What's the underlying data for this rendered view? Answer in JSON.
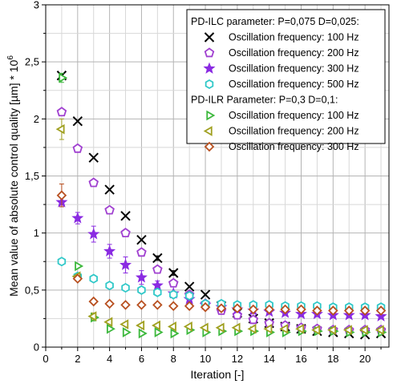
{
  "chart_data": {
    "type": "scatter",
    "xlabel": "Iteration [-]",
    "ylabel_main": "Mean value of absolute control quality [µm] * 10",
    "ylabel_exp": "6",
    "xlim": [
      0,
      21.5
    ],
    "ylim": [
      0,
      3
    ],
    "xticks": [
      0,
      2,
      4,
      6,
      8,
      10,
      12,
      14,
      16,
      18,
      20
    ],
    "xtick_labels": [
      "0",
      "2",
      "4",
      "6",
      "8",
      "10",
      "12",
      "14",
      "16",
      "18",
      "20"
    ],
    "yticks": [
      0,
      0.5,
      1,
      1.5,
      2,
      2.5,
      3
    ],
    "ytick_labels": [
      "0",
      "0,5",
      "1",
      "1,5",
      "2",
      "2,5",
      "3"
    ],
    "grid": true,
    "legend_position": "top-right",
    "legend_groups": [
      {
        "title": "PD-ILC parameter: P=0,075 D=0,025:",
        "series": [
          0,
          1,
          2,
          3
        ]
      },
      {
        "title": "PD-ILR Parameter: P=0,3 D=0,1:",
        "series": [
          4,
          5,
          6
        ]
      }
    ],
    "series": [
      {
        "name": "Oscillation frequency: 100 Hz",
        "marker": "x",
        "color": "#000000",
        "x": [
          1,
          2,
          3,
          4,
          5,
          6,
          7,
          8,
          9,
          10,
          11,
          12,
          13,
          14,
          15,
          16,
          17,
          18,
          19,
          20,
          21
        ],
        "y": [
          2.38,
          1.98,
          1.66,
          1.38,
          1.15,
          0.94,
          0.78,
          0.65,
          0.53,
          0.46,
          0.36,
          0.3,
          0.25,
          0.21,
          0.18,
          0.16,
          0.14,
          0.13,
          0.12,
          0.11,
          0.12
        ],
        "err": [
          0,
          0,
          0,
          0,
          0,
          0,
          0.02,
          0.02,
          0,
          0,
          0,
          0,
          0,
          0,
          0,
          0,
          0,
          0,
          0,
          0,
          0
        ]
      },
      {
        "name": "Oscillation frequency: 200 Hz",
        "marker": "pentagon",
        "color": "#a040d0",
        "x": [
          1,
          2,
          3,
          4,
          5,
          6,
          7,
          8,
          9,
          10,
          11,
          12,
          13,
          14,
          15,
          16,
          17,
          18,
          19,
          20,
          21
        ],
        "y": [
          2.06,
          1.74,
          1.44,
          1.2,
          1.0,
          0.83,
          0.68,
          0.56,
          0.46,
          0.38,
          0.32,
          0.28,
          0.24,
          0.21,
          0.19,
          0.17,
          0.16,
          0.15,
          0.15,
          0.15,
          0.15
        ],
        "err": [
          0,
          0,
          0,
          0,
          0.03,
          0.03,
          0,
          0,
          0,
          0,
          0,
          0,
          0,
          0,
          0,
          0,
          0,
          0,
          0,
          0,
          0
        ]
      },
      {
        "name": "Oscillation frequency: 300 Hz",
        "marker": "star",
        "color": "#8a2be2",
        "x": [
          1,
          2,
          3,
          4,
          5,
          6,
          7,
          8,
          9,
          10,
          11,
          12,
          13,
          14,
          15,
          16,
          17,
          18,
          19,
          20,
          21
        ],
        "y": [
          1.27,
          1.13,
          0.99,
          0.84,
          0.72,
          0.61,
          0.54,
          0.47,
          0.42,
          0.37,
          0.35,
          0.33,
          0.32,
          0.31,
          0.3,
          0.29,
          0.29,
          0.28,
          0.28,
          0.28,
          0.27
        ],
        "err": [
          0.04,
          0.05,
          0.07,
          0.06,
          0.07,
          0.06,
          0.04,
          0,
          0,
          0,
          0,
          0,
          0,
          0,
          0,
          0,
          0,
          0,
          0,
          0,
          0
        ]
      },
      {
        "name": "Oscillation frequency: 500 Hz",
        "marker": "hexagon",
        "color": "#30c8c8",
        "x": [
          1,
          2,
          3,
          4,
          5,
          6,
          7,
          8,
          9,
          10,
          11,
          12,
          13,
          14,
          15,
          16,
          17,
          18,
          19,
          20,
          21
        ],
        "y": [
          0.75,
          0.62,
          0.6,
          0.54,
          0.52,
          0.5,
          0.48,
          0.46,
          0.45,
          0.38,
          0.38,
          0.37,
          0.37,
          0.37,
          0.36,
          0.36,
          0.36,
          0.35,
          0.35,
          0.35,
          0.35
        ],
        "err": [
          0,
          0,
          0,
          0,
          0,
          0,
          0,
          0,
          0,
          0,
          0,
          0,
          0,
          0,
          0,
          0,
          0,
          0,
          0,
          0,
          0
        ]
      },
      {
        "name": "Oscillation frequency: 100 Hz",
        "marker": "tri-right",
        "color": "#3cb83c",
        "x": [
          1,
          2,
          3,
          4,
          5,
          6,
          7,
          8,
          9,
          10,
          11,
          12,
          13,
          14,
          15,
          16,
          17,
          18,
          19,
          20,
          21
        ],
        "y": [
          2.36,
          0.71,
          0.26,
          0.16,
          0.13,
          0.12,
          0.13,
          0.12,
          0.15,
          0.13,
          0.14,
          0.14,
          0.14,
          0.13,
          0.13,
          0.14,
          0.14,
          0.14,
          0.13,
          0.13,
          0.13
        ],
        "err": [
          0.04,
          0,
          0.03,
          0,
          0,
          0,
          0,
          0,
          0,
          0,
          0,
          0,
          0,
          0,
          0,
          0,
          0,
          0,
          0,
          0,
          0
        ]
      },
      {
        "name": "Oscillation frequency: 200 Hz",
        "marker": "tri-left",
        "color": "#a0a020",
        "x": [
          1,
          2,
          3,
          4,
          5,
          6,
          7,
          8,
          9,
          10,
          11,
          12,
          13,
          14,
          15,
          16,
          17,
          18,
          19,
          20,
          21
        ],
        "y": [
          1.91,
          0.62,
          0.27,
          0.22,
          0.2,
          0.19,
          0.19,
          0.18,
          0.18,
          0.17,
          0.17,
          0.17,
          0.16,
          0.16,
          0.16,
          0.16,
          0.15,
          0.15,
          0.15,
          0.15,
          0.15
        ],
        "err": [
          0.09,
          0,
          0.03,
          0,
          0,
          0,
          0,
          0,
          0,
          0,
          0,
          0,
          0,
          0,
          0,
          0,
          0,
          0,
          0,
          0,
          0
        ]
      },
      {
        "name": "Oscillation frequency: 300 Hz",
        "marker": "diamond",
        "color": "#b85020",
        "x": [
          1,
          2,
          3,
          4,
          5,
          6,
          7,
          8,
          9,
          10,
          11,
          12,
          13,
          14,
          15,
          16,
          17,
          18,
          19,
          20,
          21
        ],
        "y": [
          1.33,
          0.6,
          0.4,
          0.38,
          0.37,
          0.37,
          0.37,
          0.36,
          0.36,
          0.35,
          0.34,
          0.34,
          0.33,
          0.33,
          0.33,
          0.33,
          0.32,
          0.32,
          0.32,
          0.32,
          0.32
        ],
        "err": [
          0.1,
          0,
          0,
          0,
          0,
          0,
          0,
          0,
          0,
          0,
          0,
          0,
          0,
          0,
          0,
          0,
          0,
          0,
          0,
          0,
          0
        ]
      }
    ]
  }
}
